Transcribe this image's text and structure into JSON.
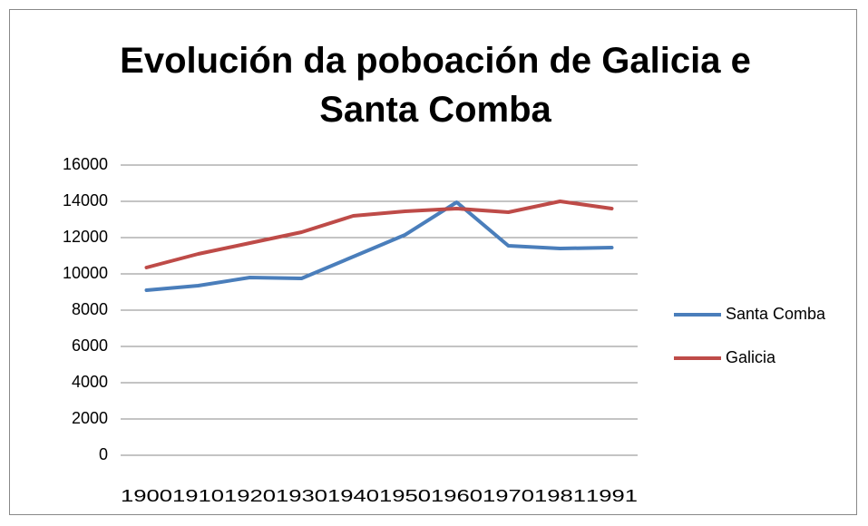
{
  "chart_data": {
    "type": "line",
    "title": "Evolución da poboación de Galicia e Santa Comba",
    "categories": [
      "1900",
      "1910",
      "1920",
      "1930",
      "1940",
      "1950",
      "1960",
      "1970",
      "1981",
      "1991"
    ],
    "series": [
      {
        "name": "Santa Comba",
        "color": "#4a7ebb",
        "values": [
          9100,
          9350,
          9800,
          9750,
          10950,
          12150,
          13950,
          11550,
          11400,
          11450
        ]
      },
      {
        "name": "Galicia",
        "color": "#be4b48",
        "values": [
          10350,
          11100,
          11700,
          12300,
          13200,
          13450,
          13600,
          13400,
          14000,
          13600
        ]
      }
    ],
    "ylim": [
      0,
      16000
    ],
    "yticks": [
      0,
      2000,
      4000,
      6000,
      8000,
      10000,
      12000,
      14000,
      16000
    ],
    "grid": true,
    "legend": "right"
  }
}
